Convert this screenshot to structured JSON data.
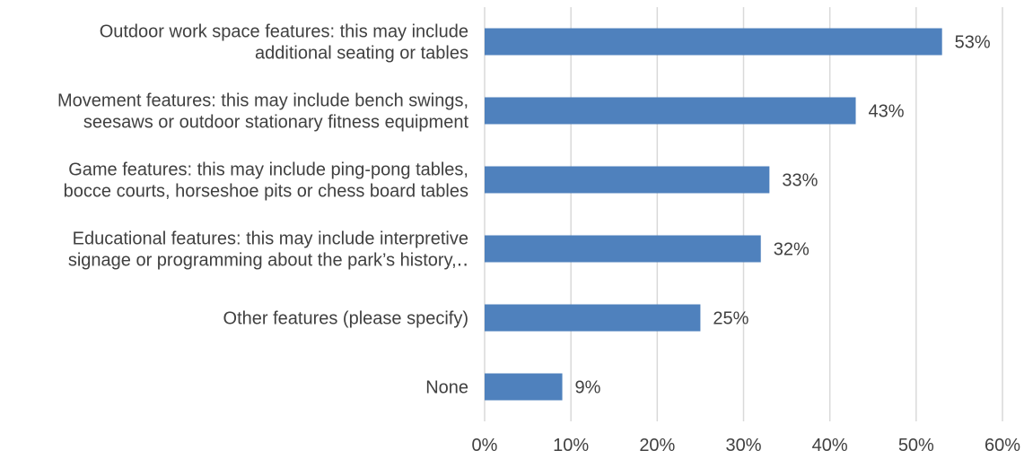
{
  "chart_data": {
    "type": "bar",
    "orientation": "horizontal",
    "categories": [
      [
        "Outdoor work space features: this may include",
        "additional seating or tables"
      ],
      [
        "Movement features: this may include bench swings,",
        "seesaws or outdoor stationary fitness equipment"
      ],
      [
        "Game features: this may include ping-pong tables,",
        "bocce courts, horseshoe pits or chess board tables"
      ],
      [
        "Educational features: this may include interpretive",
        "signage or programming about the park’s history,‥"
      ],
      [
        "Other features (please specify)"
      ],
      [
        "None"
      ]
    ],
    "values": [
      53,
      43,
      33,
      32,
      25,
      9
    ],
    "data_labels": [
      "53%",
      "43%",
      "33%",
      "32%",
      "25%",
      "9%"
    ],
    "xlim": [
      0,
      60
    ],
    "x_ticks": [
      0,
      10,
      20,
      30,
      40,
      50,
      60
    ],
    "x_tick_labels": [
      "0%",
      "10%",
      "20%",
      "30%",
      "40%",
      "50%",
      "60%"
    ],
    "title": "",
    "xlabel": "",
    "ylabel": "",
    "grid": "vertical",
    "legend": "none",
    "bar_color": "#4f81bd"
  }
}
